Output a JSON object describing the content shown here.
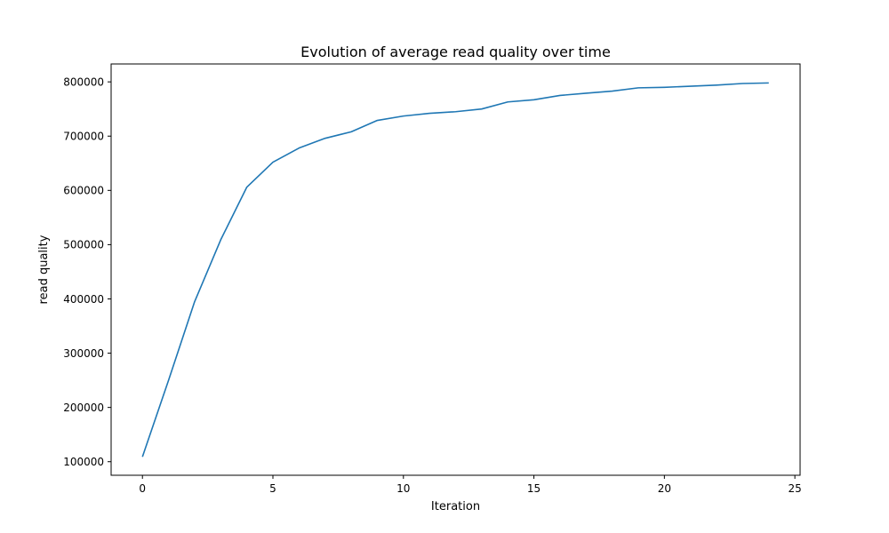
{
  "chart_data": {
    "type": "line",
    "title": "Evolution of average read quality over time",
    "xlabel": "Iteration",
    "ylabel": "read quality",
    "xlim": [
      -1.2,
      25.2
    ],
    "ylim": [
      75000,
      833000
    ],
    "xticks": [
      0,
      5,
      10,
      15,
      20,
      25
    ],
    "yticks": [
      100000,
      200000,
      300000,
      400000,
      500000,
      600000,
      700000,
      800000
    ],
    "xtick_labels": [
      "0",
      "5",
      "10",
      "15",
      "20",
      "25"
    ],
    "ytick_labels": [
      "100000",
      "200000",
      "300000",
      "400000",
      "500000",
      "600000",
      "700000",
      "800000"
    ],
    "grid": false,
    "series": [
      {
        "color": "#1f77b4",
        "x": [
          0,
          1,
          2,
          3,
          4,
          5,
          6,
          7,
          8,
          9,
          10,
          11,
          12,
          13,
          14,
          15,
          16,
          17,
          18,
          19,
          20,
          21,
          22,
          23,
          24
        ],
        "y": [
          109000,
          250000,
          395000,
          509000,
          606000,
          652000,
          678000,
          696000,
          708000,
          729000,
          737000,
          742000,
          745000,
          750000,
          763000,
          767000,
          775000,
          779000,
          783000,
          789000,
          790000,
          792000,
          794000,
          797000,
          798000
        ]
      }
    ]
  }
}
